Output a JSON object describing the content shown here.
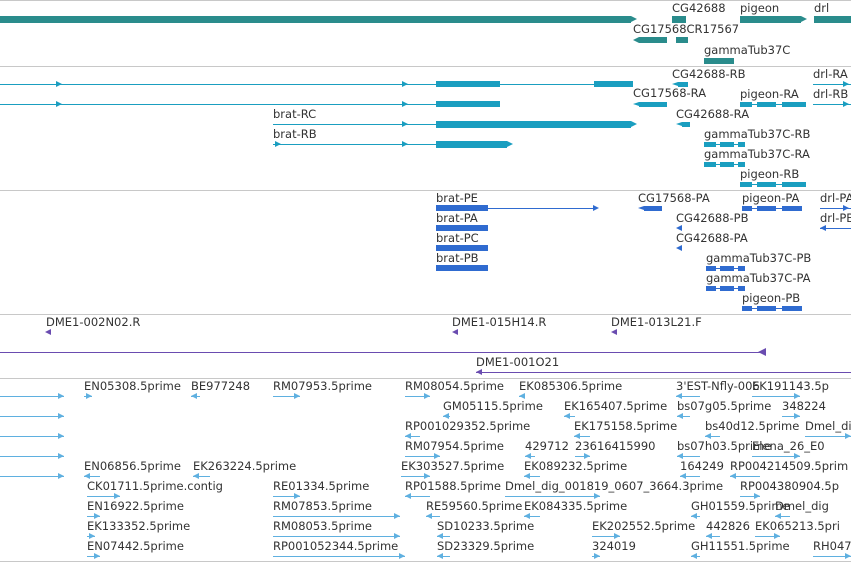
{
  "colors": {
    "gene": "#2a8c8c",
    "mrna": "#1a9ec0",
    "cds": "#2f6bd0",
    "clone": "#6a4cb0",
    "est": "#5fb0e0",
    "separator": "#c8c8c8",
    "text": "#333333"
  },
  "tracks": {
    "genes": {
      "labels": [
        "CG42688",
        "pigeon",
        "drl",
        "CG17568CR17567",
        "gammaTub37C"
      ]
    },
    "transcripts": {
      "labels": [
        "CG42688-RB",
        "drl-RA",
        "CG17568-RA",
        "pigeon-RA",
        "drl-RB",
        "brat-RC",
        "CG42688-RA",
        "brat-RB",
        "gammaTub37C-RB",
        "gammaTub37C-RA",
        "pigeon-RB"
      ]
    },
    "proteins": {
      "labels": [
        "brat-PE",
        "CG17568-PA",
        "pigeon-PA",
        "drl-PA",
        "brat-PA",
        "CG42688-PB",
        "drl-PB",
        "brat-PC",
        "CG42688-PA",
        "brat-PB",
        "gammaTub37C-PB",
        "gammaTub37C-PA",
        "pigeon-PB"
      ]
    },
    "clones": {
      "labels": [
        "DME1-002N02.R",
        "DME1-015H14.R",
        "DME1-013L21.F",
        "DME1-001O21"
      ]
    },
    "ests": {
      "labels": [
        "EN05308.5prime",
        "BE977248",
        "RM07953.5prime",
        "RM08054.5prime",
        "EK085306.5prime",
        "3'EST-Nfly-006",
        "EK191143.5p",
        "GM05115.5prime",
        "EK165407.5prime",
        "bs07g05.5prime",
        "348224",
        "RP001029352.5prime",
        "EK175158.5prime",
        "bs40d12.5prime",
        "Dmel_di",
        "RM07954.5prime",
        "429712",
        "23616415990",
        "bs07h03.5prime",
        "Elena_26_E0",
        "EN06856.5prime",
        "EK263224.5prime",
        "EK303527.5prime",
        "EK089232.5prime",
        "164249",
        "RP004214509.5prim",
        "CK01711.5prime.contig",
        "RE01334.5prime",
        "RP01588.5prime",
        "Dmel_dig_001819_0607_3664.3prime",
        "RP004380904.5p",
        "EN16922.5prime",
        "RM07853.5prime",
        "RE59560.5prime",
        "EK084335.5prime",
        "GH01559.5prime",
        "Dmel_dig",
        "EK133352.5prime",
        "RM08053.5prime",
        "SD10233.5prime",
        "EK202552.5prime",
        "442826",
        "EK065213.5pri",
        "EN07442.5prime",
        "RP001052344.5prime",
        "SD23329.5prime",
        "324019",
        "GH11551.5prime",
        "RH047"
      ]
    }
  }
}
